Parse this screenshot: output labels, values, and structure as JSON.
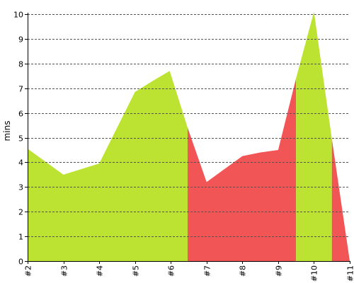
{
  "chart_data": {
    "type": "area",
    "categories": [
      "#2",
      "#3",
      "#4",
      "#5",
      "#6",
      "#7",
      "#8",
      "#9",
      "#10",
      "#11"
    ],
    "points": [
      {
        "x": 2.0,
        "y": 4.55
      },
      {
        "x": 3.0,
        "y": 3.5
      },
      {
        "x": 4.0,
        "y": 3.95
      },
      {
        "x": 5.0,
        "y": 6.85
      },
      {
        "x": 5.5,
        "y": 7.3
      },
      {
        "x": 5.97,
        "y": 7.7
      },
      {
        "x": 6.47,
        "y": 5.4
      },
      {
        "x": 7.0,
        "y": 3.2
      },
      {
        "x": 8.0,
        "y": 4.25
      },
      {
        "x": 8.5,
        "y": 4.4
      },
      {
        "x": 9.0,
        "y": 4.5
      },
      {
        "x": 9.5,
        "y": 7.4
      },
      {
        "x": 10.0,
        "y": 10.1
      },
      {
        "x": 10.5,
        "y": 4.95
      },
      {
        "x": 11.0,
        "y": 0.0
      }
    ],
    "segments": [
      {
        "from": 2.0,
        "to": 6.47,
        "color": "#bde332"
      },
      {
        "from": 6.47,
        "to": 9.5,
        "color": "#f25555"
      },
      {
        "from": 9.5,
        "to": 10.5,
        "color": "#bde332"
      },
      {
        "from": 10.5,
        "to": 11.0,
        "color": "#f25555"
      }
    ],
    "xlim": [
      2,
      11
    ],
    "ylim": [
      0,
      10
    ],
    "yticks": [
      0,
      1,
      2,
      3,
      4,
      5,
      6,
      7,
      8,
      9,
      10
    ],
    "xlabel": "",
    "ylabel": "mins",
    "grid": "horizontal dashed",
    "legend": "none"
  }
}
